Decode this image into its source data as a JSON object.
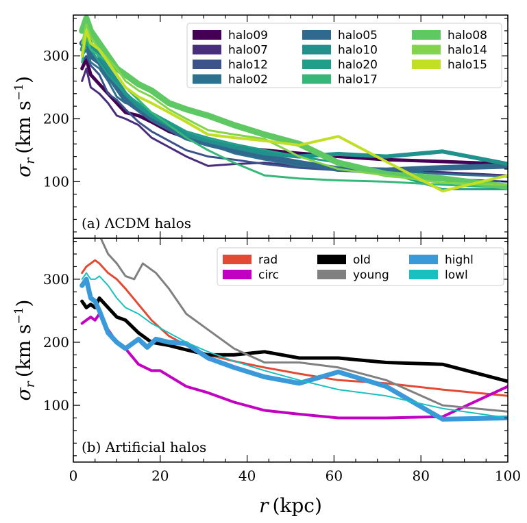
{
  "chart_data": [
    {
      "type": "line",
      "panel": "top",
      "annotation": "(a)   ΛCDM halos",
      "ylabel": "σ_r (km s⁻¹)",
      "ylabel_parts": {
        "sym": "σ",
        "sub": "r",
        "open": "(km s",
        "sup": "−1",
        "close": ")"
      },
      "xlim": [
        0,
        100
      ],
      "ylim": [
        10,
        365
      ],
      "yticks": [
        100,
        200,
        300
      ],
      "legend_location": "top-right",
      "series": [
        {
          "name": "halo09",
          "color": "#440154",
          "width": 5,
          "x": [
            2,
            3,
            4,
            6,
            8,
            10,
            12,
            15,
            18,
            22,
            26,
            31,
            37,
            44,
            52,
            61,
            72,
            85,
            100
          ],
          "y": [
            280,
            295,
            270,
            255,
            240,
            225,
            210,
            205,
            195,
            180,
            170,
            162,
            155,
            150,
            145,
            140,
            135,
            132,
            128
          ]
        },
        {
          "name": "halo07",
          "color": "#472d7b",
          "width": 3,
          "x": [
            2,
            3,
            4,
            6,
            8,
            10,
            12,
            15,
            18,
            22,
            26,
            31,
            37,
            44,
            52,
            61,
            72,
            85,
            100
          ],
          "y": [
            260,
            280,
            250,
            240,
            225,
            205,
            200,
            190,
            170,
            155,
            140,
            125,
            128,
            130,
            125,
            120,
            118,
            115,
            110
          ]
        },
        {
          "name": "halo12",
          "color": "#3b528b",
          "width": 3,
          "x": [
            2,
            3,
            4,
            6,
            8,
            10,
            12,
            15,
            18,
            22,
            26,
            31,
            37,
            44,
            52,
            61,
            72,
            85,
            100
          ],
          "y": [
            290,
            300,
            285,
            270,
            240,
            230,
            215,
            195,
            180,
            165,
            150,
            140,
            135,
            128,
            122,
            118,
            112,
            105,
            100
          ]
        },
        {
          "name": "halo02",
          "color": "#2c728e",
          "width": 3,
          "x": [
            2,
            3,
            4,
            6,
            8,
            10,
            12,
            15,
            18,
            22,
            26,
            31,
            37,
            44,
            52,
            61,
            72,
            85,
            100
          ],
          "y": [
            300,
            310,
            290,
            280,
            260,
            235,
            225,
            220,
            205,
            190,
            175,
            160,
            145,
            135,
            125,
            122,
            118,
            112,
            108
          ]
        },
        {
          "name": "halo05",
          "color": "#31688e",
          "width": 8,
          "x": [
            2,
            3,
            4,
            6,
            8,
            10,
            12,
            15,
            18,
            22,
            26,
            31,
            37,
            44,
            52,
            61,
            72,
            85,
            100
          ],
          "y": [
            320,
            330,
            300,
            290,
            270,
            250,
            230,
            215,
            200,
            185,
            170,
            160,
            150,
            140,
            130,
            120,
            118,
            122,
            125
          ]
        },
        {
          "name": "halo10",
          "color": "#21918c",
          "width": 6,
          "x": [
            2,
            3,
            4,
            6,
            8,
            10,
            12,
            15,
            18,
            22,
            26,
            31,
            37,
            44,
            52,
            61,
            72,
            85,
            100
          ],
          "y": [
            310,
            335,
            320,
            300,
            280,
            260,
            240,
            220,
            205,
            190,
            175,
            165,
            155,
            145,
            140,
            144,
            140,
            148,
            128
          ]
        },
        {
          "name": "halo20",
          "color": "#1f9e89",
          "width": 3,
          "x": [
            2,
            3,
            4,
            6,
            8,
            10,
            12,
            15,
            18,
            22,
            26,
            31,
            37,
            44,
            52,
            61,
            72,
            85,
            100
          ],
          "y": [
            300,
            320,
            310,
            290,
            270,
            255,
            240,
            225,
            210,
            195,
            180,
            170,
            160,
            150,
            140,
            130,
            115,
            88,
            88
          ]
        },
        {
          "name": "halo17",
          "color": "#35b779",
          "width": 3,
          "x": [
            2,
            3,
            4,
            6,
            8,
            10,
            12,
            15,
            18,
            22,
            26,
            31,
            37,
            44,
            52,
            61,
            72,
            85,
            100
          ],
          "y": [
            290,
            330,
            310,
            300,
            290,
            270,
            250,
            230,
            210,
            190,
            170,
            150,
            130,
            110,
            105,
            102,
            100,
            95,
            90
          ]
        },
        {
          "name": "halo08",
          "color": "#5ec962",
          "width": 9,
          "x": [
            2,
            3,
            4,
            6,
            8,
            10,
            12,
            15,
            18,
            22,
            26,
            31,
            37,
            44,
            52,
            61,
            72,
            85,
            100
          ],
          "y": [
            340,
            360,
            340,
            320,
            300,
            280,
            270,
            255,
            245,
            225,
            215,
            205,
            190,
            175,
            160,
            130,
            112,
            105,
            92
          ]
        },
        {
          "name": "halo14",
          "color": "#84d44b",
          "width": 3,
          "x": [
            2,
            3,
            4,
            6,
            8,
            10,
            12,
            15,
            18,
            22,
            26,
            31,
            37,
            44,
            52,
            61,
            72,
            85,
            100
          ],
          "y": [
            320,
            350,
            330,
            310,
            295,
            280,
            260,
            245,
            235,
            215,
            200,
            182,
            175,
            168,
            140,
            120,
            110,
            98,
            95
          ]
        },
        {
          "name": "halo15",
          "color": "#c2df23",
          "width": 4,
          "x": [
            2,
            3,
            4,
            6,
            8,
            10,
            12,
            15,
            18,
            22,
            26,
            31,
            37,
            44,
            52,
            61,
            72,
            85,
            100
          ],
          "y": [
            300,
            340,
            320,
            310,
            290,
            270,
            250,
            235,
            225,
            210,
            195,
            175,
            170,
            165,
            158,
            172,
            132,
            85,
            110
          ]
        }
      ]
    },
    {
      "type": "line",
      "panel": "bottom",
      "annotation": "(b)   Artificial halos",
      "xlabel": "r (kpc)",
      "xlabel_parts": {
        "sym": "r",
        "rest": "(kpc)"
      },
      "ylabel": "σ_r (km s⁻¹)",
      "ylabel_parts": {
        "sym": "σ",
        "sub": "r",
        "open": "(km s",
        "sup": "−1",
        "close": ")"
      },
      "xlim": [
        0,
        100
      ],
      "ylim": [
        10,
        365
      ],
      "xticks": [
        0,
        20,
        40,
        60,
        80,
        100
      ],
      "yticks": [
        100,
        200,
        300
      ],
      "legend_location": "top-right",
      "series": [
        {
          "name": "rad",
          "color": "#e34a33",
          "width": 3,
          "x": [
            2,
            3,
            4,
            5,
            6,
            8,
            10,
            12,
            15,
            18,
            22,
            26,
            31,
            37,
            44,
            52,
            61,
            72,
            85,
            100
          ],
          "y": [
            310,
            320,
            325,
            330,
            325,
            310,
            300,
            285,
            260,
            235,
            210,
            195,
            180,
            170,
            160,
            150,
            140,
            135,
            125,
            115
          ]
        },
        {
          "name": "circ",
          "color": "#c200c2",
          "width": 4,
          "x": [
            2,
            3,
            4,
            5,
            6,
            8,
            10,
            12,
            15,
            18,
            20,
            26,
            31,
            37,
            44,
            52,
            61,
            72,
            85,
            100
          ],
          "y": [
            230,
            235,
            240,
            235,
            245,
            220,
            200,
            190,
            165,
            155,
            155,
            130,
            120,
            105,
            92,
            86,
            80,
            80,
            82,
            130
          ]
        },
        {
          "name": "old",
          "color": "#000000",
          "width": 5,
          "x": [
            2,
            3,
            4,
            5,
            6,
            8,
            10,
            12,
            15,
            18,
            22,
            26,
            31,
            37,
            44,
            52,
            61,
            72,
            85,
            100
          ],
          "y": [
            265,
            255,
            260,
            255,
            270,
            255,
            240,
            235,
            215,
            200,
            195,
            188,
            180,
            180,
            185,
            175,
            175,
            168,
            165,
            138
          ]
        },
        {
          "name": "young",
          "color": "#808080",
          "width": 3,
          "x": [
            6,
            8,
            10,
            12,
            14,
            16,
            19,
            22,
            26,
            31,
            37,
            44,
            52,
            61,
            72,
            85,
            100
          ],
          "y": [
            370,
            340,
            325,
            305,
            300,
            325,
            310,
            285,
            245,
            220,
            190,
            168,
            168,
            160,
            140,
            100,
            90
          ]
        },
        {
          "name": "highl",
          "color": "#3a9ad9",
          "width": 7,
          "x": [
            2,
            3,
            4,
            5,
            6,
            8,
            10,
            12,
            15,
            17,
            19,
            22,
            26,
            31,
            37,
            44,
            52,
            61,
            72,
            85,
            100
          ],
          "y": [
            290,
            300,
            270,
            265,
            250,
            215,
            200,
            190,
            205,
            192,
            205,
            200,
            198,
            175,
            160,
            145,
            135,
            153,
            130,
            78,
            80
          ]
        },
        {
          "name": "lowl",
          "color": "#19c0c0",
          "width": 2,
          "x": [
            2,
            3,
            4,
            5,
            6,
            8,
            10,
            12,
            15,
            18,
            22,
            26,
            31,
            37,
            44,
            52,
            61,
            72,
            85,
            100
          ],
          "y": [
            300,
            310,
            300,
            300,
            305,
            290,
            270,
            255,
            245,
            230,
            215,
            200,
            185,
            170,
            155,
            140,
            125,
            115,
            95,
            80
          ]
        }
      ]
    }
  ]
}
